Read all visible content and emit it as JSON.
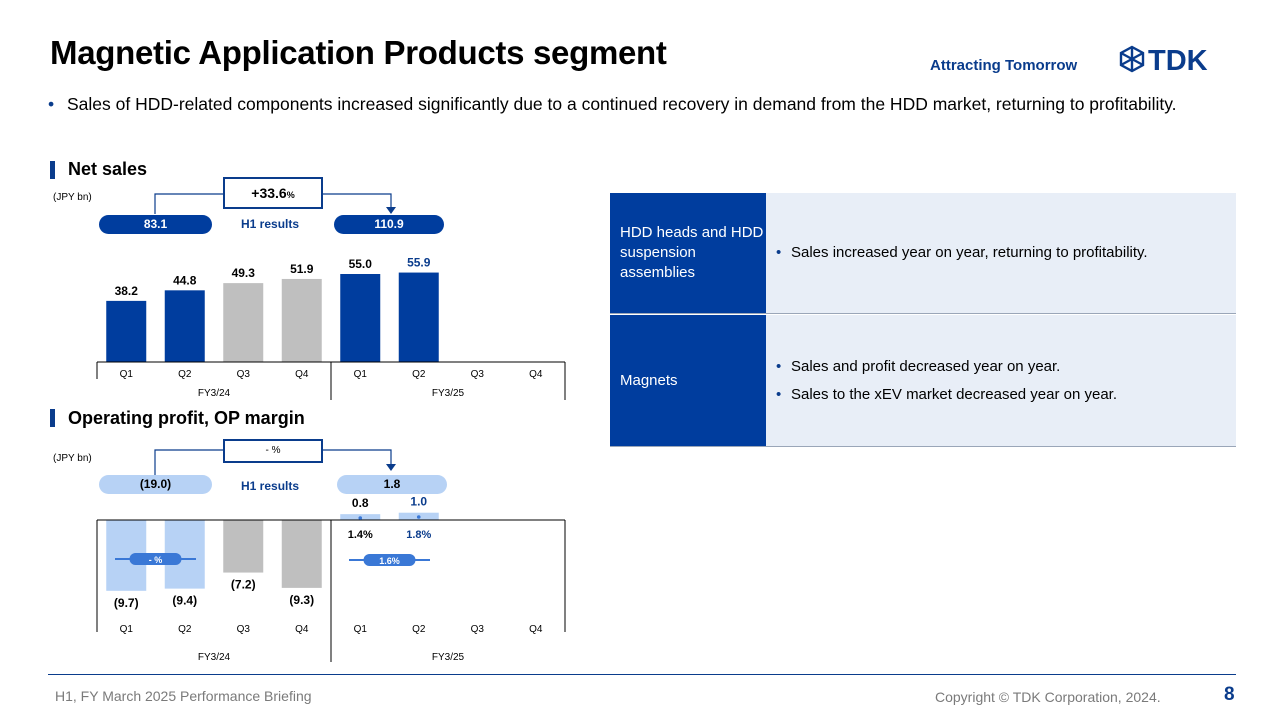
{
  "title": "Magnetic Application Products segment",
  "tagline": "Attracting Tomorrow",
  "logo_text": "TDK",
  "bullet": "Sales of HDD-related components increased significantly due to a continued recovery in demand from the HDD market, returning to profitability.",
  "net_sales": {
    "heading": "Net sales",
    "unit": "(JPY bn)",
    "growth": "+33.6",
    "growth_unit": "%",
    "prev_h1": "83.1",
    "curr_h1": "110.9",
    "h1_label": "H1 results"
  },
  "op_profit": {
    "heading": "Operating profit, OP margin",
    "unit": "(JPY bn)",
    "growth": "- %",
    "prev_h1": "(19.0)",
    "curr_h1": "1.8",
    "h1_label": "H1 results",
    "prev_margin_badge": "- %",
    "curr_margin_badge": "1.6%"
  },
  "chart_data": [
    {
      "type": "bar",
      "title": "Net sales",
      "ylabel": "(JPY bn)",
      "categories": [
        "Q1",
        "Q2",
        "Q3",
        "Q4",
        "Q1",
        "Q2",
        "Q3",
        "Q4"
      ],
      "groups": [
        "FY3/24",
        "FY3/24",
        "FY3/24",
        "FY3/24",
        "FY3/25",
        "FY3/25",
        "FY3/25",
        "FY3/25"
      ],
      "group_labels": [
        "FY3/24",
        "FY3/25"
      ],
      "values": [
        38.2,
        44.8,
        49.3,
        51.9,
        55.0,
        55.9,
        null,
        null
      ],
      "labels": [
        "38.2",
        "44.8",
        "49.3",
        "51.9",
        "55.0",
        "55.9",
        "",
        ""
      ],
      "colors": [
        "#003d9e",
        "#003d9e",
        "#bfbfbf",
        "#bfbfbf",
        "#003d9e",
        "#003d9e",
        "",
        ""
      ],
      "label_colors": [
        "#000000",
        "#000000",
        "#000000",
        "#000000",
        "#000000",
        "#0a3c8c",
        "",
        ""
      ],
      "ylim": [
        0,
        60
      ]
    },
    {
      "type": "bar",
      "title": "Operating profit, OP margin",
      "ylabel": "(JPY bn)",
      "categories": [
        "Q1",
        "Q2",
        "Q3",
        "Q4",
        "Q1",
        "Q2",
        "Q3",
        "Q4"
      ],
      "groups": [
        "FY3/24",
        "FY3/24",
        "FY3/24",
        "FY3/24",
        "FY3/25",
        "FY3/25",
        "FY3/25",
        "FY3/25"
      ],
      "group_labels": [
        "FY3/24",
        "FY3/25"
      ],
      "values": [
        -9.7,
        -9.4,
        -7.2,
        -9.3,
        0.8,
        1.0,
        null,
        null
      ],
      "labels": [
        "(9.7)",
        "(9.4)",
        "(7.2)",
        "(9.3)",
        "0.8",
        "1.0",
        "",
        ""
      ],
      "colors": [
        "#b7d2f5",
        "#b7d2f5",
        "#bfbfbf",
        "#bfbfbf",
        "#b7d2f5",
        "#b7d2f5",
        "",
        ""
      ],
      "label_colors": [
        "#000000",
        "#000000",
        "#000000",
        "#000000",
        "#000000",
        "#0a3c8c",
        "",
        ""
      ],
      "op_margin": [
        "",
        "",
        "",
        "",
        "1.4%",
        "1.8%",
        "",
        ""
      ],
      "op_margin_colors": [
        "",
        "",
        "",
        "",
        "#000000",
        "#0a3c8c",
        "",
        ""
      ],
      "ylim": [
        -10,
        1
      ]
    }
  ],
  "table": {
    "rows": [
      {
        "label": "HDD heads and HDD suspension assemblies",
        "items": [
          "Sales increased year on year, returning to profitability."
        ]
      },
      {
        "label": "Magnets",
        "items": [
          "Sales and profit decreased year on year.",
          "Sales to the xEV market decreased year on year."
        ]
      }
    ]
  },
  "footer": {
    "left": "H1, FY March 2025 Performance Briefing",
    "right": "Copyright  © TDK Corporation, 2024.",
    "page": "8"
  },
  "colors": {
    "brand": "#0a3c8c",
    "bar_dark": "#003d9e",
    "bar_light": "#b7d2f5",
    "bar_gray": "#bfbfbf",
    "table_bg": "#e8eef7"
  }
}
